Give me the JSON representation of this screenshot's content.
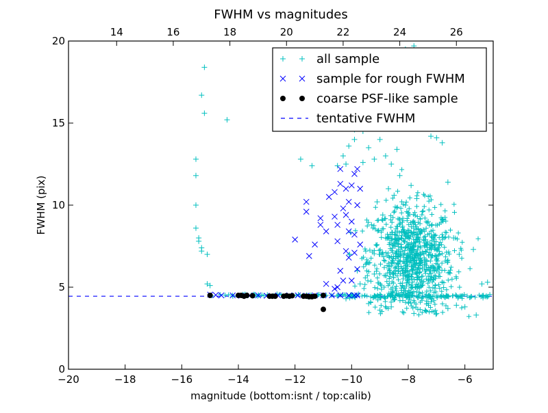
{
  "chart_data": {
    "type": "scatter",
    "title": "FWHM vs magnitudes",
    "xlabel": "magnitude (bottom:isnt / top:calib)",
    "ylabel": "FWHM (pix)",
    "xlim": [
      -20,
      -5
    ],
    "ylim": [
      0,
      20
    ],
    "xticks": [
      -20,
      -18,
      -16,
      -14,
      -12,
      -10,
      -8,
      -6
    ],
    "yticks": [
      0,
      5,
      10,
      15,
      20
    ],
    "x2_ticks": [
      14,
      16,
      18,
      20,
      22,
      24,
      26
    ],
    "x2_offset": 32.3,
    "grid": false,
    "legend_position": "top-right",
    "colors": {
      "all": "#00bfbf",
      "rough": "#0000ff",
      "psf": "#000000",
      "fwhm": "#0000ff"
    },
    "series": [
      {
        "name": "all sample",
        "marker": "plus",
        "points": [
          [
            -15.2,
            18.4
          ],
          [
            -15.3,
            16.7
          ],
          [
            -15.2,
            15.6
          ],
          [
            -14.4,
            15.2
          ],
          [
            -15.5,
            12.8
          ],
          [
            -15.5,
            11.8
          ],
          [
            -15.5,
            10.0
          ],
          [
            -15.5,
            8.6
          ],
          [
            -15.4,
            8.0
          ],
          [
            -15.4,
            7.8
          ],
          [
            -15.3,
            7.4
          ],
          [
            -15.3,
            7.2
          ],
          [
            -15.1,
            7.0
          ],
          [
            -15.1,
            5.2
          ],
          [
            -15.0,
            5.1
          ],
          [
            -11.8,
            12.8
          ],
          [
            -11.4,
            12.4
          ],
          [
            -10.5,
            12.4
          ],
          [
            -10.2,
            12.5
          ],
          [
            -10.3,
            13.0
          ],
          [
            -10.1,
            13.6
          ],
          [
            -9.9,
            14.0
          ],
          [
            -9.9,
            14.6
          ],
          [
            -9.6,
            14.5
          ],
          [
            -9.4,
            13.5
          ],
          [
            -9.6,
            12.6
          ],
          [
            -9.2,
            12.8
          ],
          [
            -9.0,
            14.0
          ],
          [
            -8.8,
            13.0
          ],
          [
            -8.6,
            12.5
          ],
          [
            -8.4,
            13.4
          ],
          [
            -8.2,
            14.8
          ],
          [
            -8.0,
            15.5
          ],
          [
            -7.9,
            16.6
          ],
          [
            -8.1,
            19.5
          ],
          [
            -7.8,
            19.7
          ],
          [
            -7.6,
            17.8
          ],
          [
            -7.4,
            15.2
          ],
          [
            -7.2,
            14.2
          ],
          [
            -7.0,
            14.1
          ],
          [
            -6.8,
            13.8
          ],
          [
            -6.6,
            11.4
          ],
          [
            -6.4,
            8.0
          ],
          [
            -6.2,
            7.0
          ],
          [
            -5.7,
            7.3
          ],
          [
            -5.4,
            5.2
          ],
          [
            -5.2,
            5.3
          ],
          [
            -5.6,
            3.3
          ],
          [
            -6.0,
            3.8
          ],
          [
            -6.3,
            3.9
          ],
          [
            -6.6,
            3.7
          ],
          [
            -7.0,
            3.4
          ],
          [
            -7.4,
            3.6
          ],
          [
            -7.8,
            3.4
          ],
          [
            -8.2,
            3.5
          ],
          [
            -8.6,
            3.8
          ],
          [
            -9.0,
            3.6
          ],
          [
            -9.4,
            4.0
          ],
          [
            -10.2,
            4.3
          ],
          [
            -9.8,
            6.0
          ],
          [
            -9.5,
            7.2
          ],
          [
            -9.3,
            8.8
          ],
          [
            -9.1,
            10.2
          ],
          [
            -8.9,
            9.4
          ],
          [
            -8.7,
            11.0
          ],
          [
            -8.5,
            10.6
          ],
          [
            -8.3,
            11.8
          ],
          [
            -8.1,
            10.0
          ],
          [
            -7.9,
            11.2
          ],
          [
            -7.7,
            10.4
          ],
          [
            -7.5,
            9.6
          ],
          [
            -7.3,
            9.0
          ],
          [
            -7.1,
            8.2
          ],
          [
            -6.9,
            7.6
          ],
          [
            -9.7,
            5.2
          ],
          [
            -9.5,
            6.4
          ],
          [
            -9.2,
            5.8
          ],
          [
            -9.0,
            7.0
          ],
          [
            -8.8,
            8.0
          ]
        ]
      },
      {
        "name": "sample for rough FWHM",
        "marker": "x",
        "points": [
          [
            -15.0,
            4.55
          ],
          [
            -14.8,
            4.52
          ],
          [
            -14.6,
            4.5
          ],
          [
            -14.2,
            4.5
          ],
          [
            -13.9,
            4.48
          ],
          [
            -13.6,
            4.5
          ],
          [
            -13.3,
            4.5
          ],
          [
            -13.0,
            4.48
          ],
          [
            -12.6,
            4.5
          ],
          [
            -12.2,
            4.5
          ],
          [
            -11.9,
            4.5
          ],
          [
            -11.6,
            4.48
          ],
          [
            -11.3,
            4.5
          ],
          [
            -11.0,
            4.5
          ],
          [
            -10.7,
            4.5
          ],
          [
            -10.4,
            4.5
          ],
          [
            -10.1,
            4.5
          ],
          [
            -9.9,
            4.5
          ],
          [
            -9.8,
            4.5
          ],
          [
            -12.0,
            7.9
          ],
          [
            -11.6,
            10.2
          ],
          [
            -11.6,
            9.6
          ],
          [
            -11.5,
            6.9
          ],
          [
            -11.3,
            7.6
          ],
          [
            -11.1,
            9.2
          ],
          [
            -11.1,
            8.8
          ],
          [
            -10.9,
            8.4
          ],
          [
            -10.8,
            10.5
          ],
          [
            -10.6,
            10.8
          ],
          [
            -10.6,
            9.3
          ],
          [
            -10.5,
            8.8
          ],
          [
            -10.5,
            7.8
          ],
          [
            -10.4,
            11.3
          ],
          [
            -10.4,
            12.2
          ],
          [
            -10.3,
            9.8
          ],
          [
            -10.2,
            11.0
          ],
          [
            -10.2,
            7.2
          ],
          [
            -10.1,
            10.2
          ],
          [
            -10.1,
            6.8
          ],
          [
            -10.0,
            11.2
          ],
          [
            -10.0,
            9.0
          ],
          [
            -10.0,
            5.4
          ],
          [
            -9.9,
            11.9
          ],
          [
            -9.9,
            8.2
          ],
          [
            -9.8,
            12.2
          ],
          [
            -9.8,
            10.0
          ],
          [
            -9.8,
            6.1
          ],
          [
            -9.7,
            11.0
          ],
          [
            -9.7,
            7.6
          ],
          [
            -10.3,
            5.4
          ],
          [
            -10.4,
            6.0
          ],
          [
            -10.5,
            5.0
          ],
          [
            -10.6,
            4.9
          ],
          [
            -10.9,
            5.2
          ],
          [
            -9.9,
            7.1
          ],
          [
            -10.1,
            8.4
          ],
          [
            -10.2,
            9.4
          ]
        ]
      },
      {
        "name": "coarse PSF-like sample",
        "marker": "dot",
        "points": [
          [
            -15.0,
            4.5
          ],
          [
            -14.0,
            4.5
          ],
          [
            -13.9,
            4.5
          ],
          [
            -13.8,
            4.45
          ],
          [
            -13.7,
            4.5
          ],
          [
            -13.5,
            4.48
          ],
          [
            -12.9,
            4.45
          ],
          [
            -12.8,
            4.45
          ],
          [
            -12.7,
            4.45
          ],
          [
            -12.4,
            4.45
          ],
          [
            -12.3,
            4.48
          ],
          [
            -12.2,
            4.45
          ],
          [
            -12.1,
            4.48
          ],
          [
            -11.7,
            4.45
          ],
          [
            -11.6,
            4.45
          ],
          [
            -11.5,
            4.42
          ],
          [
            -11.4,
            4.42
          ],
          [
            -11.3,
            4.45
          ],
          [
            -11.0,
            4.5
          ],
          [
            -11.0,
            3.65
          ]
        ]
      }
    ],
    "reference_lines": [
      {
        "name": "tentative FWHM",
        "y": 4.45,
        "style": "dashed"
      }
    ]
  }
}
